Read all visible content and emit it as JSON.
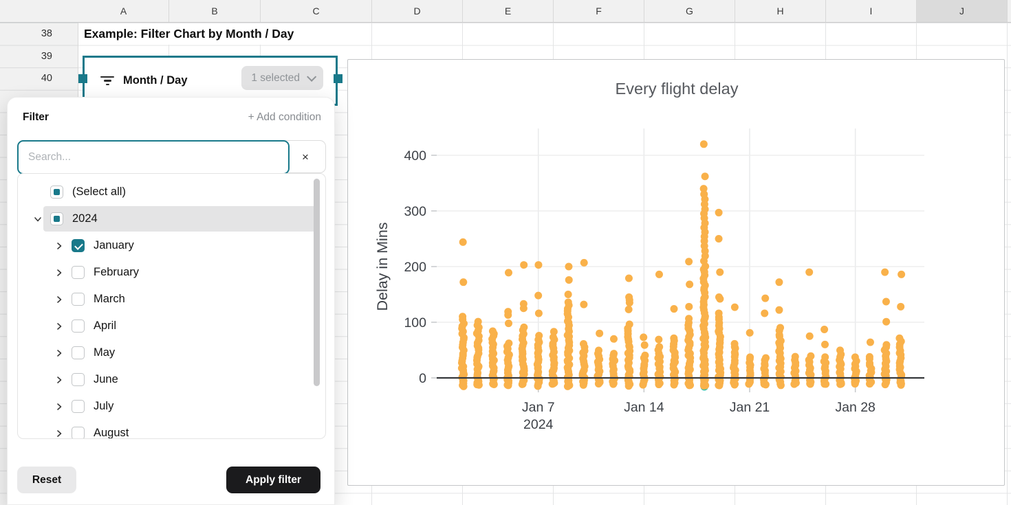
{
  "spreadsheet": {
    "columns": [
      "A",
      "B",
      "C",
      "D",
      "E",
      "F",
      "G",
      "H",
      "I",
      "J"
    ],
    "selected_column": "J",
    "row_numbers": [
      "38",
      "39",
      "40"
    ],
    "title_cell": "Example: Filter Chart by Month / Day"
  },
  "filter_widget": {
    "label": "Month / Day",
    "selected_badge": "1 selected"
  },
  "filter_popup": {
    "title": "Filter",
    "add_condition_label": "+ Add condition",
    "search_placeholder": "Search...",
    "clear_label": "×",
    "tree": [
      {
        "label": "(Select all)",
        "state": "indeterminate",
        "chevron": "none",
        "highlight": false
      },
      {
        "label": "2024",
        "state": "indeterminate",
        "chevron": "down",
        "highlight": true,
        "level": 0
      },
      {
        "label": "January",
        "state": "checked",
        "chevron": "right",
        "level": 1
      },
      {
        "label": "February",
        "state": "unchecked",
        "chevron": "right",
        "level": 1
      },
      {
        "label": "March",
        "state": "unchecked",
        "chevron": "right",
        "level": 1
      },
      {
        "label": "April",
        "state": "unchecked",
        "chevron": "right",
        "level": 1
      },
      {
        "label": "May",
        "state": "unchecked",
        "chevron": "right",
        "level": 1
      },
      {
        "label": "June",
        "state": "unchecked",
        "chevron": "right",
        "level": 1
      },
      {
        "label": "July",
        "state": "unchecked",
        "chevron": "right",
        "level": 1
      },
      {
        "label": "August",
        "state": "unchecked",
        "chevron": "right",
        "level": 1
      }
    ],
    "reset_label": "Reset",
    "apply_label": "Apply filter"
  },
  "chart_data": {
    "type": "scatter",
    "title": "Every flight delay",
    "ylabel": "Delay in Mins",
    "y_ticks": [
      0,
      100,
      200,
      300,
      400
    ],
    "x_ticks": [
      {
        "day": 7,
        "label": "Jan 7",
        "sublabel": "2024"
      },
      {
        "day": 14,
        "label": "Jan 14"
      },
      {
        "day": 21,
        "label": "Jan 21"
      },
      {
        "day": 28,
        "label": "Jan 28"
      }
    ],
    "xlim_days": [
      1,
      32
    ],
    "ylim": [
      -30,
      450
    ],
    "grid": true,
    "legend": "none",
    "point_color": "#F9B14A",
    "accent_point": {
      "day": 18,
      "value": -16,
      "color": "#3FBFA6"
    },
    "seed": 20240118,
    "days": [
      {
        "day": 2,
        "min": -14,
        "max": 110,
        "outliers": [
          172,
          244
        ]
      },
      {
        "day": 3,
        "min": -14,
        "max": 100,
        "outliers": []
      },
      {
        "day": 4,
        "min": -12,
        "max": 85,
        "outliers": []
      },
      {
        "day": 5,
        "min": -14,
        "max": 62,
        "outliers": [
          98,
          113,
          119,
          189
        ]
      },
      {
        "day": 6,
        "min": -12,
        "max": 90,
        "outliers": [
          125,
          133,
          203
        ]
      },
      {
        "day": 7,
        "min": -14,
        "max": 75,
        "outliers": [
          116,
          148,
          203
        ]
      },
      {
        "day": 8,
        "min": -12,
        "max": 73,
        "outliers": [
          83
        ]
      },
      {
        "day": 9,
        "min": -14,
        "max": 135,
        "outliers": [
          150,
          176,
          200
        ]
      },
      {
        "day": 10,
        "min": -12,
        "max": 60,
        "outliers": [
          132,
          207
        ]
      },
      {
        "day": 11,
        "min": -12,
        "max": 48,
        "outliers": [
          80
        ]
      },
      {
        "day": 12,
        "min": -12,
        "max": 45,
        "outliers": [
          70
        ]
      },
      {
        "day": 13,
        "min": -14,
        "max": 95,
        "outliers": [
          123,
          135,
          140,
          145,
          179
        ]
      },
      {
        "day": 14,
        "min": -12,
        "max": 40,
        "outliers": [
          59,
          73
        ]
      },
      {
        "day": 15,
        "min": -12,
        "max": 55,
        "outliers": [
          69,
          186
        ]
      },
      {
        "day": 16,
        "min": -12,
        "max": 72,
        "outliers": [
          124
        ]
      },
      {
        "day": 17,
        "min": -14,
        "max": 105,
        "outliers": [
          128,
          168,
          209
        ]
      },
      {
        "day": 18,
        "min": -14,
        "max": 200,
        "outliers": [
          210,
          219,
          228,
          237,
          246,
          254,
          262,
          270,
          278,
          287,
          295,
          303,
          312,
          321,
          330,
          340,
          362,
          420
        ]
      },
      {
        "day": 19,
        "min": -14,
        "max": 116,
        "outliers": [
          142,
          145,
          190,
          250,
          297
        ]
      },
      {
        "day": 20,
        "min": -12,
        "max": 62,
        "outliers": [
          127
        ]
      },
      {
        "day": 21,
        "min": -12,
        "max": 38,
        "outliers": [
          81
        ]
      },
      {
        "day": 22,
        "min": -12,
        "max": 36,
        "outliers": [
          116,
          143
        ]
      },
      {
        "day": 23,
        "min": -12,
        "max": 89,
        "outliers": [
          122,
          172
        ]
      },
      {
        "day": 24,
        "min": -12,
        "max": 38,
        "outliers": []
      },
      {
        "day": 25,
        "min": -12,
        "max": 38,
        "outliers": [
          75,
          190
        ]
      },
      {
        "day": 26,
        "min": -12,
        "max": 36,
        "outliers": [
          60,
          87
        ]
      },
      {
        "day": 27,
        "min": -12,
        "max": 48,
        "outliers": []
      },
      {
        "day": 28,
        "min": -12,
        "max": 36,
        "outliers": []
      },
      {
        "day": 29,
        "min": -12,
        "max": 38,
        "outliers": [
          64
        ]
      },
      {
        "day": 30,
        "min": -12,
        "max": 60,
        "outliers": [
          101,
          137,
          190
        ]
      },
      {
        "day": 31,
        "min": -12,
        "max": 71,
        "outliers": [
          128,
          186
        ]
      }
    ]
  },
  "colors": {
    "accent_teal": "#19798A",
    "point_orange": "#F9B14A",
    "grid_line": "#E3E4E5",
    "header_bg": "#F1F1F1",
    "apply_btn_bg": "#1B1B1D"
  }
}
